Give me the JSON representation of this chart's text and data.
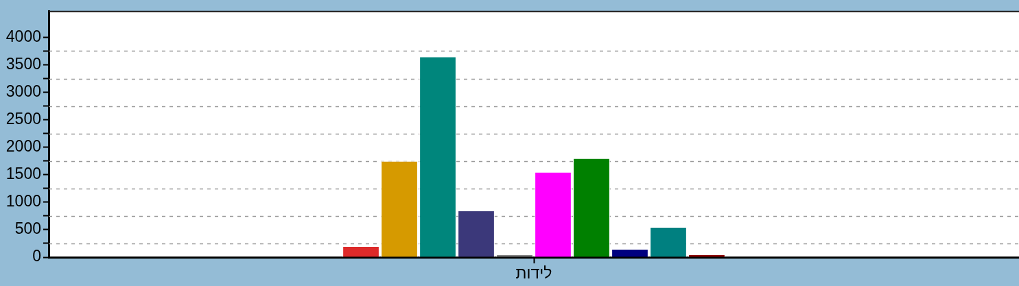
{
  "chart_data": {
    "type": "bar",
    "categories": [
      "לידות"
    ],
    "series": [
      {
        "color": "#dd2a2a",
        "values": [
          200
        ]
      },
      {
        "color": "#d69a00",
        "values": [
          1750
        ]
      },
      {
        "color": "#00867c",
        "values": [
          3650
        ]
      },
      {
        "color": "#3b387a",
        "values": [
          850
        ]
      },
      {
        "color": "#808080",
        "values": [
          50
        ]
      },
      {
        "color": "#ff00ff",
        "values": [
          1550
        ]
      },
      {
        "color": "#008000",
        "values": [
          1800
        ]
      },
      {
        "color": "#000080",
        "values": [
          150
        ]
      },
      {
        "color": "#008080",
        "values": [
          550
        ]
      },
      {
        "color": "#8b0000",
        "values": [
          50
        ]
      }
    ],
    "ylim": [
      0,
      4470
    ],
    "yticks": [
      0,
      {
        "value": 250,
        "label": null
      },
      500,
      {
        "value": 750,
        "label": null
      },
      1000,
      {
        "value": 1250,
        "label": null
      },
      1500,
      {
        "value": 1750,
        "label": null
      },
      2000,
      {
        "value": 2250,
        "label": null
      },
      2500,
      {
        "value": 2750,
        "label": null
      },
      3000,
      {
        "value": 3250,
        "label": null
      },
      3500,
      {
        "value": 3750,
        "label": null
      },
      4000
    ],
    "grid": "y"
  }
}
